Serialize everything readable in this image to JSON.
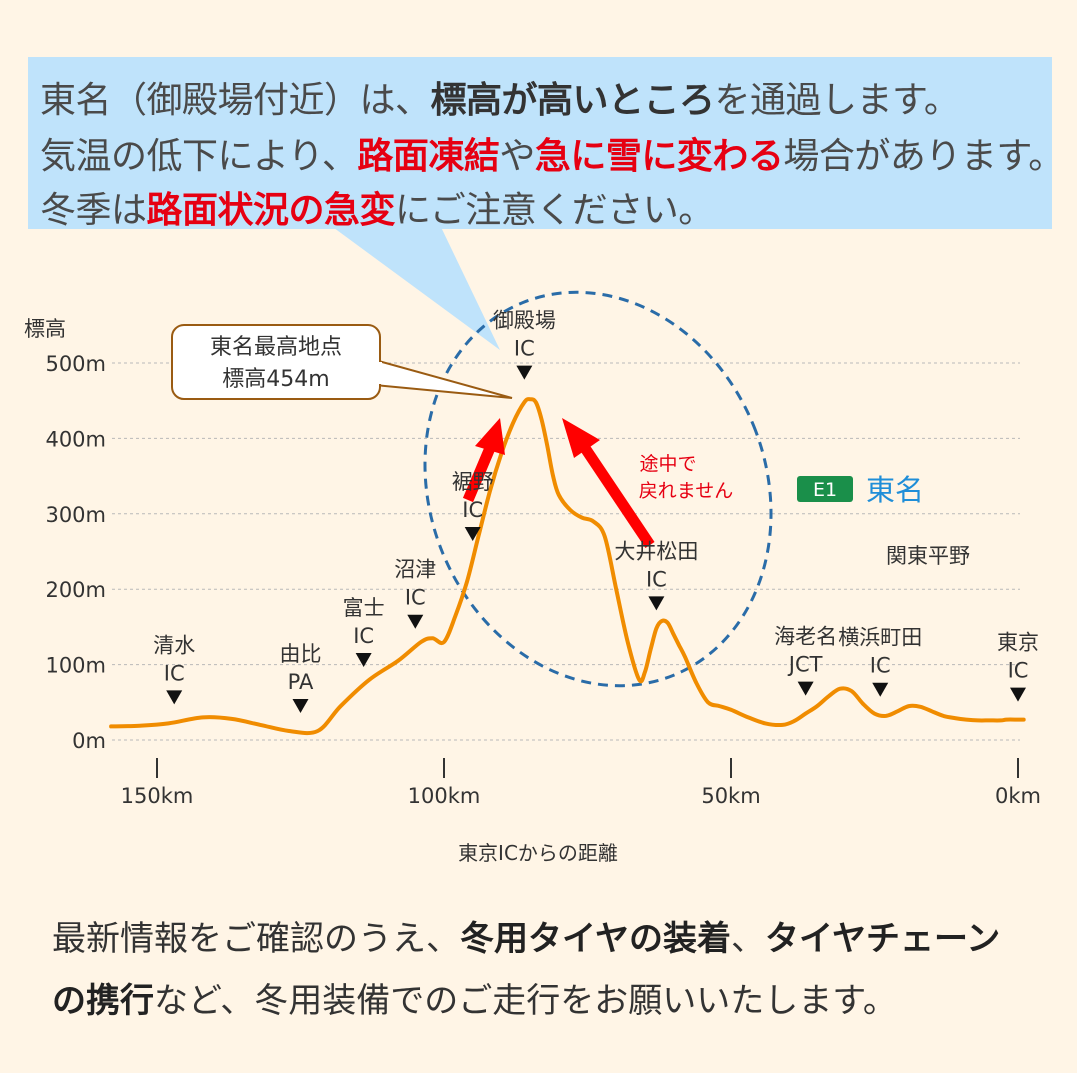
{
  "callout": {
    "line1": {
      "pre": "東名（御殿場付近）は、",
      "bold": "標高が高いところ",
      "post": "を通過します。"
    },
    "line2": {
      "pre": "気温の低下により、",
      "red1": "路面凍結",
      "mid": "や",
      "red2": "急に雪に変わる",
      "post": "場合があります。"
    },
    "line3": {
      "pre": "冬季は",
      "red": "路面状況の急変",
      "post": "にご注意ください。"
    }
  },
  "chart_data": {
    "type": "line",
    "ylabel": "標高",
    "xlabel": "東京ICからの距離",
    "yticks": [
      "0m",
      "100m",
      "200m",
      "300m",
      "400m",
      "500m"
    ],
    "ytick_values": [
      0,
      100,
      200,
      300,
      400,
      500
    ],
    "xticks": [
      "150km",
      "100km",
      "50km",
      "0km"
    ],
    "xtick_values": [
      150,
      100,
      50,
      0
    ],
    "xlim": [
      158,
      -2
    ],
    "ylim": [
      0,
      500
    ],
    "grid": "horizontal dashed",
    "line_color": "#f08c00",
    "series": [
      {
        "x": [
          158,
          153,
          148,
          142,
          137,
          132,
          127,
          122,
          118,
          113,
          108,
          104,
          102,
          100,
          98,
          96,
          94,
          92,
          90,
          88,
          86,
          85,
          84,
          83,
          82,
          81,
          80,
          78,
          76,
          74,
          72,
          70,
          68,
          66,
          65,
          64,
          63,
          62,
          61,
          60,
          59,
          58,
          56,
          54,
          52,
          50,
          47,
          44,
          41,
          39,
          37,
          35,
          33,
          31,
          29,
          27,
          25,
          23,
          21,
          19,
          17,
          15,
          13,
          11,
          9,
          7,
          5,
          3,
          2,
          0,
          -1
        ],
        "y": [
          18,
          19,
          22,
          30,
          28,
          20,
          12,
          12,
          45,
          80,
          105,
          130,
          135,
          130,
          165,
          210,
          270,
          330,
          380,
          420,
          448,
          452,
          448,
          425,
          390,
          350,
          325,
          305,
          295,
          290,
          270,
          200,
          130,
          80,
          90,
          120,
          148,
          158,
          155,
          140,
          125,
          110,
          75,
          50,
          45,
          40,
          30,
          22,
          20,
          25,
          35,
          45,
          58,
          68,
          65,
          48,
          35,
          32,
          38,
          45,
          44,
          38,
          32,
          29,
          27,
          26,
          26,
          26,
          27,
          27,
          27
        ]
      }
    ],
    "peak_label": [
      "東名最高地点",
      "標高454m"
    ],
    "interchanges": [
      {
        "label": [
          "清水",
          "IC"
        ],
        "x": 147
      },
      {
        "label": [
          "由比",
          "PA"
        ],
        "x": 125
      },
      {
        "label": [
          "富士",
          "IC"
        ],
        "x": 114
      },
      {
        "label": [
          "沼津",
          "IC"
        ],
        "x": 105
      },
      {
        "label": [
          "裾野",
          "IC"
        ],
        "x": 95
      },
      {
        "label": [
          "御殿場",
          "IC"
        ],
        "x": 86
      },
      {
        "label": [
          "大井松田",
          "IC"
        ],
        "x": 63
      },
      {
        "label": [
          "海老名",
          "JCT"
        ],
        "x": 37
      },
      {
        "label": [
          "横浜町田",
          "IC"
        ],
        "x": 24
      },
      {
        "label": [
          "東京",
          "IC"
        ],
        "x": 0
      }
    ],
    "annotations": {
      "no_return": [
        "途中で",
        "戻れません"
      ],
      "route_badge": "E1",
      "route_name": "東名",
      "region": "関東平野"
    }
  },
  "footer": {
    "line1": {
      "pre": "最新情報をご確認のうえ、",
      "b1": "冬用タイヤの装着",
      "mid": "、",
      "b2": "タイヤチェーン"
    },
    "line2": {
      "b": "の携行",
      "post": "など、冬用装備でのご走行をお願いいたします。"
    }
  },
  "colors": {
    "background": "#fff5e6",
    "callout_bg": "#bfe3fb",
    "highlight_red": "#e60012",
    "line": "#f08c00",
    "ellipse": "#2a6ca8",
    "route_badge_bg": "#1a8f4a",
    "route_name": "#1f8ed8",
    "peak_box_border": "#9a5b12"
  }
}
